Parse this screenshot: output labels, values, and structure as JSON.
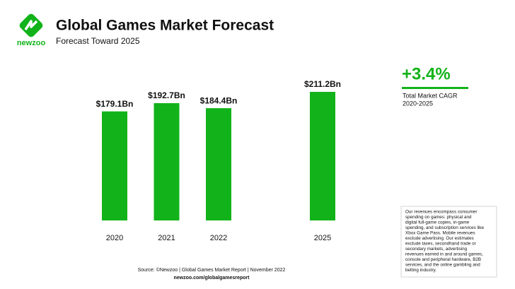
{
  "chart_data": {
    "type": "bar",
    "title": "Global Games Market Forecast",
    "subtitle": "Forecast Toward 2025",
    "brand": "newzoo",
    "categories": [
      "2020",
      "2021",
      "2022",
      "2025"
    ],
    "values": [
      179.1,
      192.7,
      184.4,
      211.2
    ],
    "value_labels": [
      "$179.1Bn",
      "$192.7Bn",
      "$184.4Bn",
      "$211.2Bn"
    ],
    "color": "#12b31a",
    "ylim": [
      0,
      211.2
    ],
    "annotations": {
      "cagr": "+3.4%",
      "cagr_label": "Total Market CAGR",
      "cagr_period": "2020-2025"
    },
    "note": [
      "Our revenues encompass consumer",
      "spending on games: physical and",
      "digital full-game copies, in-game",
      "spending, and subscription services like",
      "Xbox Game Pass. Mobile revenues",
      "exclude advertising. Our estimates",
      "exclude taxes, secondhand trade or",
      "secondary markets, advertising",
      "revenues earned in and around games,",
      "console and peripheral hardware, B2B",
      "services, and the online gambling and",
      "betting industry."
    ],
    "source": "Source: ©Newzoo | Global Games Market Report | November 2022",
    "url": "newzoo.com/globalgamesreport"
  }
}
